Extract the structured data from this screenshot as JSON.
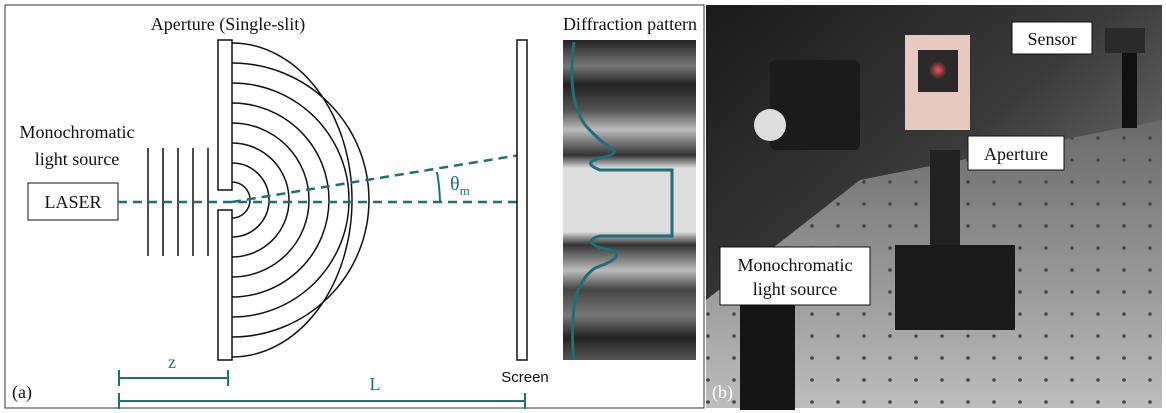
{
  "panel_a": {
    "label": "(a)",
    "aperture_title": "Aperture (Single-slit)",
    "pattern_title": "Diffraction pattern",
    "source": {
      "line1": "Monochromatic",
      "line2": "light source"
    },
    "laser": "LASER",
    "angle": {
      "symbol": "θ",
      "subscript": "m"
    },
    "distance_z": "z",
    "distance_l": "L",
    "screen": "Screen"
  },
  "panel_b": {
    "label": "(b)",
    "sensor": "Sensor",
    "aperture": "Aperture",
    "source": {
      "line1": "Monochromatic",
      "line2": "light source"
    }
  }
}
